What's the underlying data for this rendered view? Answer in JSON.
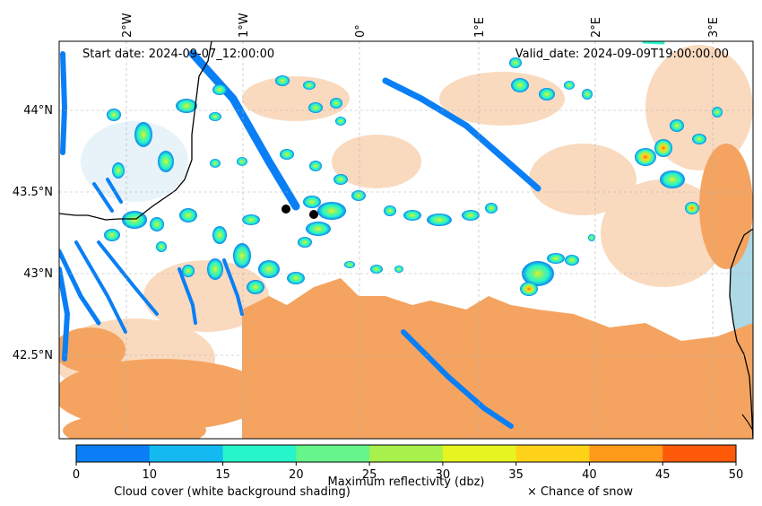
{
  "map": {
    "start_date": "Start date: 2024-09-07_12:00:00",
    "valid_date": "Valid_date: 2024-09-09T19:00:00.00",
    "lon_labels": [
      "2°W",
      "1°W",
      "0°",
      "1°E",
      "2°E",
      "3°E"
    ],
    "lat_labels": [
      "44°N",
      "43.5°N",
      "43°N",
      "42.5°N"
    ]
  },
  "colorbar": {
    "ticks": [
      "0",
      "10",
      "15",
      "20",
      "25",
      "30",
      "35",
      "40",
      "45",
      "50"
    ],
    "colors": [
      "#0a7ff5",
      "#14b9f0",
      "#26f5c9",
      "#66f58a",
      "#a8f04b",
      "#e6f51f",
      "#ffd21a",
      "#ff9a1a",
      "#ff5a0a"
    ],
    "label_reflectivity": "Maximum reflectivity (dbz)",
    "label_cloud": "Cloud cover (white background shading)",
    "label_snow": "× Chance of snow"
  },
  "colors": {
    "cloud_orange": "#f4a460",
    "cloud_light": "#f9d4b4",
    "sea": "#add8e6",
    "coast": "#000000"
  }
}
